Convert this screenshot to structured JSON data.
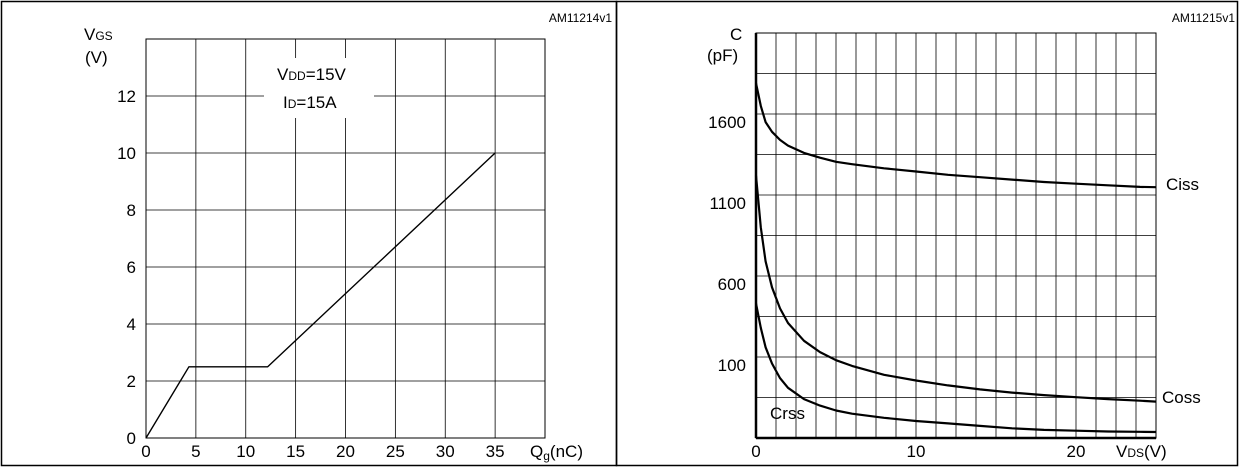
{
  "chart_data": [
    {
      "type": "line",
      "code": "AM11214v1",
      "ylabel_main": "V",
      "ylabel_sub": "GS",
      "ylabel_unit": "(V)",
      "xlabel_main": "Q",
      "xlabel_sub": "g",
      "xlabel_unit": "(nC)",
      "xlim": [
        0,
        40
      ],
      "ylim": [
        0,
        14
      ],
      "x_ticks": [
        0,
        5,
        10,
        15,
        20,
        25,
        30,
        35
      ],
      "y_ticks": [
        0,
        2,
        4,
        6,
        8,
        10,
        12
      ],
      "x_tick_labels": [
        "0",
        "5",
        "10",
        "15",
        "20",
        "25",
        "30",
        "35"
      ],
      "y_tick_labels": [
        "0",
        "2",
        "4",
        "6",
        "8",
        "10",
        "12"
      ],
      "grid": true,
      "annotations": [
        {
          "main": "V",
          "sub": "DD",
          "rest": "=15V"
        },
        {
          "main": "I",
          "sub": "D",
          "rest": "=15A"
        }
      ],
      "series": [
        {
          "x": [
            0,
            4.3,
            12.2,
            35
          ],
          "y": [
            0,
            2.5,
            2.5,
            10
          ]
        }
      ]
    },
    {
      "type": "line",
      "code": "AM11215v1",
      "ylabel_main": "C",
      "ylabel_unit": "(pF)",
      "xlabel_main": "V",
      "xlabel_sub": "DS",
      "xlabel_unit": "(V)",
      "xlim": [
        0,
        25
      ],
      "ylim": [
        -350,
        2150
      ],
      "x_ticks": [
        0,
        10,
        20
      ],
      "y_ticks": [
        100,
        600,
        1100,
        1600
      ],
      "x_tick_labels": [
        "0",
        "10",
        "20"
      ],
      "y_tick_labels": [
        "100",
        "600",
        "1100",
        "1600"
      ],
      "grid": true,
      "series": [
        {
          "name": "Ciss",
          "x": [
            0,
            0.3,
            0.6,
            1,
            1.5,
            2,
            3,
            4,
            5,
            6,
            8,
            10,
            12,
            14,
            16,
            18,
            20,
            22,
            24,
            25
          ],
          "y": [
            1840,
            1700,
            1600,
            1540,
            1490,
            1455,
            1410,
            1380,
            1355,
            1340,
            1315,
            1295,
            1275,
            1260,
            1245,
            1230,
            1220,
            1210,
            1200,
            1198
          ]
        },
        {
          "name": "Coss",
          "x": [
            0,
            0.3,
            0.6,
            1,
            1.5,
            2,
            3,
            4,
            5,
            6,
            8,
            10,
            12,
            14,
            16,
            18,
            20,
            22,
            24,
            25
          ],
          "y": [
            1270,
            950,
            740,
            580,
            450,
            360,
            250,
            180,
            130,
            95,
            40,
            5,
            -25,
            -50,
            -70,
            -85,
            -98,
            -110,
            -120,
            -125
          ]
        },
        {
          "name": "Crss",
          "x": [
            0,
            0.3,
            0.6,
            1,
            1.5,
            2,
            3,
            4,
            5,
            6,
            8,
            10,
            12,
            14,
            16,
            18,
            20,
            22,
            24,
            25
          ],
          "y": [
            480,
            330,
            210,
            110,
            20,
            -40,
            -110,
            -150,
            -180,
            -200,
            -225,
            -245,
            -260,
            -275,
            -290,
            -300,
            -305,
            -310,
            -312,
            -313
          ]
        }
      ]
    }
  ]
}
